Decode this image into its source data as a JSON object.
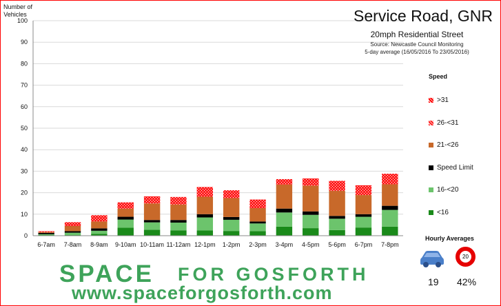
{
  "chart_data": {
    "type": "bar",
    "stacked": true,
    "title": "Service Road, GNR",
    "subtitle": "20mph Residential Street",
    "source_lines": [
      "Source: Newcastle Council Monitoring",
      "5-day average (16/05/2016 To 23/05/2016)"
    ],
    "ylabel": "Number of Vehicles",
    "ylim": [
      0,
      100
    ],
    "yticks": [
      0,
      10,
      20,
      30,
      40,
      50,
      60,
      70,
      80,
      90,
      100
    ],
    "grid": true,
    "legend_title": "Speed",
    "legend_position": "right",
    "categories": [
      "6-7am",
      "7-8am",
      "8-9am",
      "9-10am",
      "10-11am",
      "11-12am",
      "12-1pm",
      "1-2pm",
      "2-3pm",
      "3-4pm",
      "4-5pm",
      "5-6pm",
      "6-7pm",
      "7-8pm"
    ],
    "series": [
      {
        "name": "<16",
        "color": "#1a8a1a",
        "values": [
          0.3,
          0.3,
          0.8,
          3.7,
          2.8,
          2.5,
          2.4,
          2.2,
          2.1,
          4.2,
          3.5,
          2.6,
          3.8,
          4.2
        ]
      },
      {
        "name": "16-<20",
        "color": "#6cc46c",
        "values": [
          0.4,
          1.1,
          1.5,
          3.8,
          3.4,
          3.6,
          6.1,
          5.2,
          3.6,
          6.6,
          6.2,
          5.3,
          5.0,
          7.8
        ]
      },
      {
        "name": "Speed Limit",
        "color": "#000000",
        "values": [
          0.6,
          0.7,
          1.1,
          1.3,
          1.1,
          1.2,
          1.5,
          1.3,
          0.9,
          1.8,
          1.6,
          1.3,
          1.2,
          1.9
        ]
      },
      {
        "name": "21-<26",
        "color": "#c8692a",
        "values": [
          0.4,
          2.4,
          3.2,
          3.8,
          7.7,
          7.2,
          8.1,
          8.8,
          6.2,
          11.2,
          12.0,
          11.7,
          8.9,
          10.0
        ]
      },
      {
        "name": "26-<31",
        "color": "#ff2020",
        "hatch": true,
        "values": [
          0.4,
          1.7,
          2.7,
          2.6,
          3.0,
          3.2,
          4.0,
          3.2,
          3.7,
          2.3,
          3.0,
          4.2,
          4.1,
          4.4
        ]
      },
      {
        "name": ">31",
        "color": "#ff0000",
        "hatch": true,
        "values": [
          0.0,
          0.1,
          0.2,
          0.3,
          0.3,
          0.3,
          0.5,
          0.4,
          0.3,
          0.2,
          0.3,
          0.4,
          0.4,
          0.5
        ]
      }
    ]
  },
  "legend_order": [
    ">31",
    "26-<31",
    "21-<26",
    "Speed Limit",
    "16-<20",
    "<16"
  ],
  "hourly": {
    "title": "Hourly Averages",
    "vehicles_value": "19",
    "speed_limit_sign": "20",
    "percent_value": "42%",
    "car_color": "#4a7fc9"
  },
  "branding": {
    "space": "SPACE",
    "for_gosforth": "FOR GOSFORTH",
    "url": "www.spaceforgosforth.com",
    "color": "#3ea35a"
  }
}
